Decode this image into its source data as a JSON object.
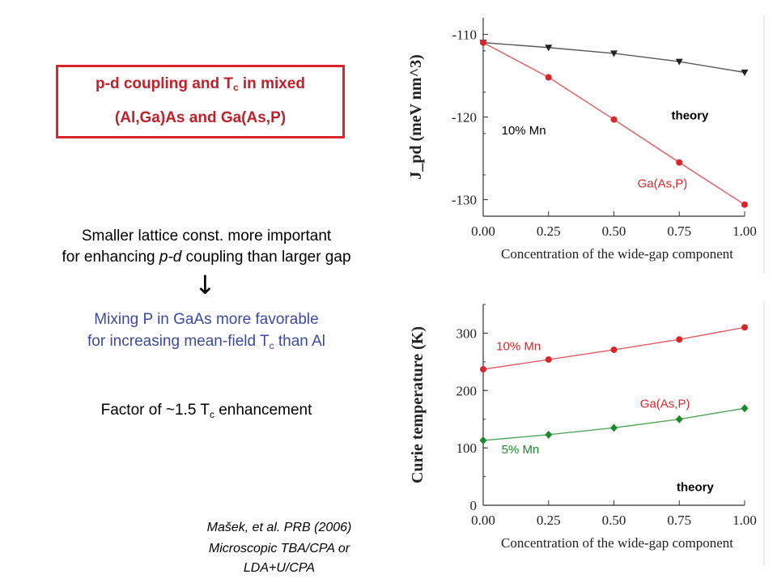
{
  "slide": {
    "title_line1_before": "p-d coupling and T",
    "title_line1_sub": "c",
    "title_line1_after": " in mixed",
    "title_line2": "(Al,Ga)As and Ga(As,P)",
    "statement_line1": "Smaller lattice const. more important",
    "statement_line2_before": "for enhancing ",
    "statement_line2_italic": "p-d",
    "statement_line2_after": " coupling than larger gap",
    "arrow": "↓",
    "conclusion_line1": "Mixing P in GaAs more favorable",
    "conclusion_line2_before": "for increasing mean-field T",
    "conclusion_line2_sub": "c",
    "conclusion_line2_after": " than Al",
    "factor_before": "Factor of ~1.5 T",
    "factor_sub": "c",
    "factor_after": " enhancement",
    "reference_line1": "Mašek, et al. PRB (2006)",
    "reference_line2": "Microscopic TBA/CPA or",
    "reference_line3": "LDA+U/CPA",
    "colors": {
      "red": "#d9262b",
      "blue": "#3c4aa6",
      "green": "#1a8a2a",
      "black": "#222222"
    }
  },
  "chart_data": [
    {
      "type": "line",
      "ylabel": "J_pd (meV nm^3)",
      "xlabel": "Concentration of the wide-gap component",
      "x": [
        0.0,
        0.25,
        0.5,
        0.75,
        1.0
      ],
      "x_tick_labels": [
        "0.00",
        "0.25",
        "0.50",
        "0.75",
        "1.00"
      ],
      "ylim": [
        -132,
        -108
      ],
      "y_ticks": [
        -110,
        -120,
        -130
      ],
      "y_tick_labels": [
        "-110",
        "-120",
        "-130"
      ],
      "series": [
        {
          "name": "",
          "color": "#222222",
          "marker": "triangle-down",
          "values": [
            -111.0,
            -111.6,
            -112.3,
            -113.3,
            -114.6
          ]
        },
        {
          "name": "",
          "color": "#d9262b",
          "marker": "circle",
          "values": [
            -111.0,
            -115.2,
            -120.3,
            -125.5,
            -130.6
          ]
        }
      ],
      "annotations": [
        {
          "text": "theory",
          "bold": true,
          "x": 0.72,
          "y": -120.3,
          "color": "#000000"
        },
        {
          "text": "10% Mn",
          "x": 0.07,
          "y": -122.1,
          "color": "#000000"
        },
        {
          "text": "Ga(As,P)",
          "x": 0.59,
          "y": -128.5,
          "color": "#d9262b"
        }
      ]
    },
    {
      "type": "line",
      "ylabel": "Curie temperature (K)",
      "xlabel": "Concentration of the wide-gap component",
      "x": [
        0.0,
        0.25,
        0.5,
        0.75,
        1.0
      ],
      "x_tick_labels": [
        "0.00",
        "0.25",
        "0.50",
        "0.75",
        "1.00"
      ],
      "ylim": [
        0,
        350
      ],
      "y_ticks": [
        0,
        100,
        200,
        300
      ],
      "y_tick_labels": [
        "0",
        "100",
        "200",
        "300"
      ],
      "series": [
        {
          "name": "",
          "color": "#d9262b",
          "marker": "circle",
          "values": [
            237,
            254,
            271,
            289,
            310
          ]
        },
        {
          "name": "",
          "color": "#1a8a2a",
          "marker": "diamond",
          "values": [
            113,
            123,
            135,
            150,
            169
          ]
        }
      ],
      "annotations": [
        {
          "text": "10% Mn",
          "x": 0.05,
          "y": 270,
          "color": "#d9262b"
        },
        {
          "text": "Ga(As,P)",
          "x": 0.6,
          "y": 170,
          "color": "#d9262b"
        },
        {
          "text": "5% Mn",
          "x": 0.07,
          "y": 90,
          "color": "#1a8a2a"
        },
        {
          "text": "theory",
          "bold": true,
          "x": 0.74,
          "y": 25,
          "color": "#000000"
        }
      ]
    }
  ]
}
